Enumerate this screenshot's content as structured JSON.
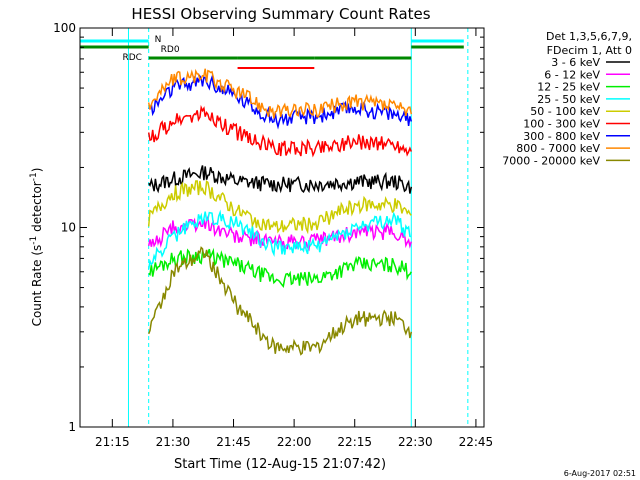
{
  "chart_data": {
    "type": "line",
    "title": "HESSI Observing Summary Count Rates",
    "xlabel": "Start Time (12-Aug-15 21:07:42)",
    "ylabel_prefix": "Count Rate (s",
    "ylabel_mid": " detector",
    "ylabel_suffix": ")",
    "ylabel_exp": "-1",
    "y_scale": "log",
    "ylim": [
      1,
      100
    ],
    "xlim": [
      "21:07",
      "22:47"
    ],
    "y_ticks": [
      {
        "value": 1,
        "label": "1"
      },
      {
        "value": 10,
        "label": "10"
      },
      {
        "value": 100,
        "label": "100"
      }
    ],
    "x_ticks": [
      {
        "time": "21:15",
        "label": "21:15"
      },
      {
        "time": "21:30",
        "label": "21:30"
      },
      {
        "time": "21:45",
        "label": "21:45"
      },
      {
        "time": "22:00",
        "label": "22:00"
      },
      {
        "time": "22:15",
        "label": "22:15"
      },
      {
        "time": "22:30",
        "label": "22:30"
      },
      {
        "time": "22:45",
        "label": "22:45"
      }
    ],
    "legend_header": [
      "Det 1,3,5,6,7,9,",
      "FDecim 1, Att 0"
    ],
    "legend_position": "right",
    "series": [
      {
        "name": "3 - 6 keV",
        "color": "#000000",
        "points": [
          [
            "21:24",
            16
          ],
          [
            "21:30",
            17.5
          ],
          [
            "21:38",
            19
          ],
          [
            "21:46",
            17
          ],
          [
            "21:55",
            16.5
          ],
          [
            "22:05",
            16.5
          ],
          [
            "22:15",
            17
          ],
          [
            "22:25",
            17
          ],
          [
            "22:29",
            16
          ]
        ]
      },
      {
        "name": "6 - 12 keV",
        "color": "#ff00ff",
        "points": [
          [
            "21:24",
            8
          ],
          [
            "21:30",
            10
          ],
          [
            "21:38",
            10.5
          ],
          [
            "21:46",
            9
          ],
          [
            "21:55",
            8.5
          ],
          [
            "22:05",
            8.5
          ],
          [
            "22:15",
            9.5
          ],
          [
            "22:25",
            9.5
          ],
          [
            "22:29",
            8.5
          ]
        ]
      },
      {
        "name": "12 - 25 keV",
        "color": "#00ee00",
        "points": [
          [
            "21:24",
            6
          ],
          [
            "21:30",
            7
          ],
          [
            "21:38",
            7.3
          ],
          [
            "21:46",
            6.5
          ],
          [
            "21:55",
            5.5
          ],
          [
            "22:05",
            5.5
          ],
          [
            "22:15",
            6.5
          ],
          [
            "22:25",
            6.5
          ],
          [
            "22:29",
            6
          ]
        ]
      },
      {
        "name": "25 - 50 keV",
        "color": "#00ffff",
        "points": [
          [
            "21:24",
            6.5
          ],
          [
            "21:30",
            9
          ],
          [
            "21:38",
            11.5
          ],
          [
            "21:46",
            10.5
          ],
          [
            "21:55",
            8
          ],
          [
            "22:05",
            8
          ],
          [
            "22:15",
            10
          ],
          [
            "22:25",
            11
          ],
          [
            "22:29",
            9
          ]
        ]
      },
      {
        "name": "50 - 100 keV",
        "color": "#cccc00",
        "points": [
          [
            "21:24",
            11
          ],
          [
            "21:30",
            15
          ],
          [
            "21:38",
            16
          ],
          [
            "21:46",
            12
          ],
          [
            "21:55",
            10
          ],
          [
            "22:05",
            10.5
          ],
          [
            "22:15",
            13
          ],
          [
            "22:25",
            13
          ],
          [
            "22:29",
            11.5
          ]
        ]
      },
      {
        "name": "100 - 300 keV",
        "color": "#ff0000",
        "points": [
          [
            "21:24",
            28
          ],
          [
            "21:30",
            34
          ],
          [
            "21:38",
            37
          ],
          [
            "21:46",
            30
          ],
          [
            "21:55",
            25
          ],
          [
            "22:05",
            25
          ],
          [
            "22:15",
            27
          ],
          [
            "22:25",
            26
          ],
          [
            "22:29",
            24
          ]
        ]
      },
      {
        "name": "300 - 800 keV",
        "color": "#0000ff",
        "points": [
          [
            "21:24",
            38
          ],
          [
            "21:30",
            50
          ],
          [
            "21:38",
            55
          ],
          [
            "21:46",
            45
          ],
          [
            "21:55",
            35
          ],
          [
            "22:05",
            36
          ],
          [
            "22:15",
            40
          ],
          [
            "22:25",
            37
          ],
          [
            "22:29",
            34
          ]
        ]
      },
      {
        "name": "800 - 7000 keV",
        "color": "#ff8800",
        "points": [
          [
            "21:24",
            42
          ],
          [
            "21:30",
            55
          ],
          [
            "21:38",
            58
          ],
          [
            "21:46",
            48
          ],
          [
            "21:55",
            38
          ],
          [
            "22:05",
            39
          ],
          [
            "22:15",
            43
          ],
          [
            "22:25",
            40
          ],
          [
            "22:29",
            37
          ]
        ]
      },
      {
        "name": "7000 - 20000 keV",
        "color": "#888800",
        "points": [
          [
            "21:24",
            3
          ],
          [
            "21:30",
            6
          ],
          [
            "21:38",
            7.5
          ],
          [
            "21:46",
            4
          ],
          [
            "21:55",
            2.5
          ],
          [
            "22:05",
            2.5
          ],
          [
            "22:15",
            3.5
          ],
          [
            "22:25",
            3.5
          ],
          [
            "22:29",
            3
          ]
        ]
      }
    ],
    "flags": {
      "rd0": {
        "label": "RD0",
        "color": "#008800",
        "segments": [
          [
            "21:24",
            "21:46"
          ],
          [
            "21:46",
            "22:05"
          ],
          [
            "22:05",
            "22:29"
          ]
        ]
      },
      "rdc": {
        "label": "RDC",
        "label_text": "RDC",
        "color": "#008800",
        "segments": [
          [
            "21:07",
            "21:24"
          ],
          [
            "22:29",
            "22:42"
          ]
        ]
      },
      "n": {
        "label": "N",
        "color": "#00ffff",
        "segments": [
          [
            "21:07",
            "21:24"
          ],
          [
            "22:29",
            "22:42"
          ]
        ]
      },
      "red_upper": {
        "color": "#ff0000",
        "segments": [
          [
            "21:46",
            "22:05"
          ]
        ]
      }
    },
    "night_lines": {
      "color": "#00ffff",
      "solid": [
        "21:19",
        "22:29"
      ],
      "dashed": [
        "21:24",
        "22:43"
      ]
    },
    "grid": false
  },
  "timestamp": "6-Aug-2017 02:51"
}
